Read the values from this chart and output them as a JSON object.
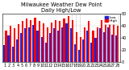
{
  "title": "Milwaukee Weather Dew Point",
  "subtitle": "Daily High/Low",
  "days": [
    1,
    2,
    3,
    4,
    5,
    6,
    7,
    8,
    9,
    10,
    11,
    12,
    13,
    14,
    15,
    16,
    17,
    18,
    19,
    20,
    21,
    22,
    23,
    24,
    25,
    26,
    27,
    28
  ],
  "high": [
    52,
    60,
    56,
    63,
    68,
    72,
    70,
    74,
    68,
    64,
    58,
    66,
    70,
    68,
    73,
    76,
    70,
    50,
    42,
    58,
    68,
    52,
    58,
    70,
    66,
    72,
    63,
    60
  ],
  "low": [
    28,
    44,
    26,
    38,
    48,
    56,
    58,
    62,
    52,
    42,
    32,
    48,
    56,
    52,
    58,
    64,
    56,
    30,
    20,
    38,
    52,
    32,
    40,
    56,
    50,
    58,
    46,
    44
  ],
  "high_color": "#ff0000",
  "low_color": "#2222cc",
  "ylim": [
    0,
    80
  ],
  "yticks": [
    0,
    20,
    40,
    60,
    80
  ],
  "background_color": "#ffffff",
  "grid_color": "#cccccc",
  "title_fontsize": 4.8,
  "tick_fontsize": 3.5,
  "dotted_cols": [
    17,
    18,
    19
  ],
  "legend_high": "High",
  "legend_low": "Low"
}
